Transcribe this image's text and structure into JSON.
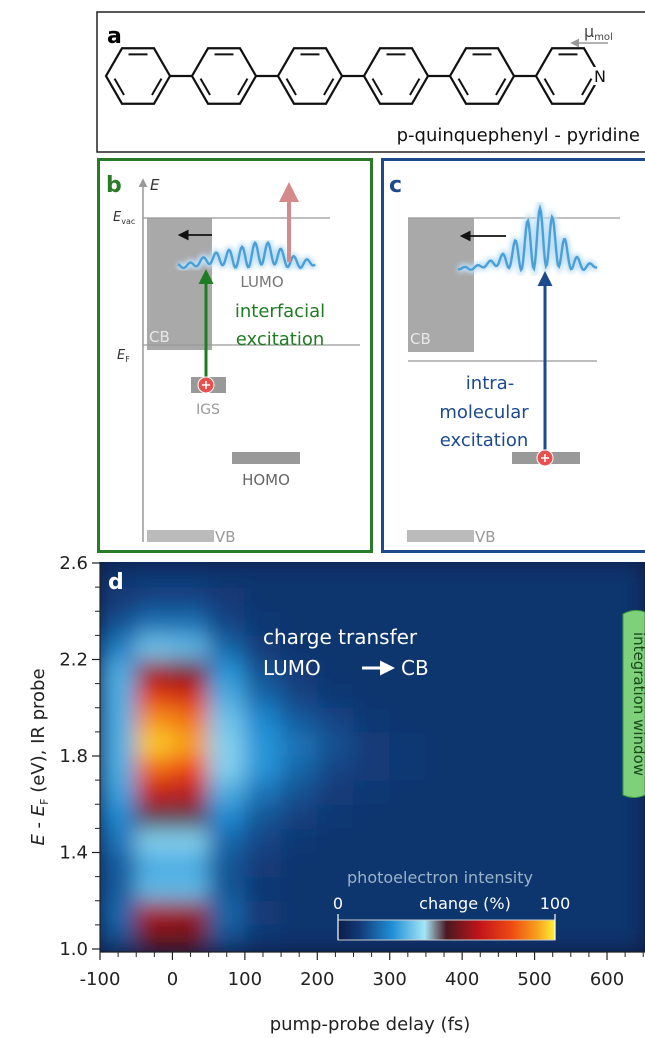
{
  "panel_a": {
    "label": "a",
    "mu": "μ",
    "mu_sub": "mol",
    "atom": "N",
    "name": "p-quinquephenyl - pyridine"
  },
  "panel_b": {
    "label": "b",
    "axis": "E",
    "evac": "E",
    "evac_sub": "vac",
    "lumo": "LUMO",
    "excitation": [
      "interfacial",
      "excitation"
    ],
    "cb": "CB",
    "ef": "E",
    "ef_sub": "F",
    "igs": "IGS",
    "homo": "HOMO",
    "vb": "VB"
  },
  "panel_c": {
    "label": "c",
    "cb": "CB",
    "excitation": [
      "intra-",
      "molecular",
      "excitation"
    ],
    "vb": "VB"
  },
  "chart_data": {
    "type": "heatmap",
    "label": "d",
    "annotation": "charge transfer",
    "transfer_from": "LUMO",
    "transfer_to": "CB",
    "integration": "integration window",
    "xlabel": "pump-probe delay (fs)",
    "ylabel": [
      "E",
      " - ",
      "E",
      "F",
      " (eV), IR probe"
    ],
    "xlim": [
      -100,
      650
    ],
    "ylim": [
      1.0,
      2.6
    ],
    "xticks": [
      -100,
      0,
      100,
      200,
      300,
      400,
      500,
      600
    ],
    "yticks": [
      {
        "value": 1.0,
        "label": "1.0"
      },
      1.4,
      1.8,
      2.2,
      2.6
    ],
    "x": [
      -75,
      -25,
      25,
      75,
      125,
      175,
      225,
      275,
      325,
      375,
      425,
      475,
      525,
      575,
      625
    ],
    "y": [
      1.05,
      1.15,
      1.25,
      1.35,
      1.45,
      1.55,
      1.65,
      1.75,
      1.85,
      1.95,
      2.05,
      2.15,
      2.25,
      2.35,
      2.45,
      2.55
    ],
    "z": [
      [
        14,
        55,
        55,
        14,
        9,
        8,
        8,
        8,
        8,
        8,
        8,
        8,
        8,
        8,
        8
      ],
      [
        18,
        62,
        60,
        18,
        10,
        8,
        8,
        8,
        8,
        8,
        8,
        8,
        8,
        8,
        8
      ],
      [
        16,
        32,
        32,
        15,
        9,
        8,
        8,
        8,
        8,
        8,
        8,
        8,
        8,
        8,
        8
      ],
      [
        16,
        30,
        30,
        15,
        10,
        8,
        8,
        8,
        8,
        8,
        8,
        8,
        8,
        8,
        8
      ],
      [
        20,
        36,
        36,
        18,
        12,
        9,
        8,
        8,
        8,
        8,
        8,
        8,
        8,
        8,
        8
      ],
      [
        24,
        48,
        48,
        24,
        15,
        11,
        9,
        8,
        8,
        8,
        8,
        8,
        8,
        8,
        8
      ],
      [
        28,
        66,
        64,
        30,
        20,
        14,
        10,
        9,
        8,
        8,
        8,
        8,
        8,
        8,
        8
      ],
      [
        30,
        84,
        80,
        36,
        26,
        18,
        12,
        10,
        9,
        8,
        8,
        8,
        8,
        8,
        8
      ],
      [
        30,
        96,
        92,
        36,
        26,
        20,
        14,
        10,
        9,
        8,
        8,
        8,
        8,
        8,
        8
      ],
      [
        30,
        90,
        86,
        34,
        24,
        16,
        12,
        9,
        8,
        8,
        8,
        8,
        8,
        8,
        8
      ],
      [
        30,
        76,
        72,
        30,
        18,
        12,
        9,
        8,
        8,
        8,
        8,
        8,
        8,
        8,
        8
      ],
      [
        30,
        60,
        56,
        26,
        14,
        10,
        8,
        8,
        8,
        8,
        8,
        8,
        8,
        8,
        8
      ],
      [
        22,
        34,
        32,
        18,
        10,
        8,
        8,
        8,
        8,
        8,
        8,
        8,
        8,
        8,
        8
      ],
      [
        14,
        20,
        20,
        12,
        9,
        8,
        8,
        8,
        8,
        8,
        8,
        8,
        8,
        8,
        8
      ],
      [
        10,
        12,
        12,
        10,
        8,
        8,
        8,
        8,
        8,
        8,
        8,
        8,
        8,
        8,
        8
      ],
      [
        8,
        9,
        9,
        8,
        8,
        8,
        8,
        8,
        8,
        8,
        8,
        8,
        8,
        8,
        8
      ]
    ],
    "colorscale": [
      [
        0,
        "#0b1c48"
      ],
      [
        10,
        "#123a78"
      ],
      [
        25,
        "#1f8fd6"
      ],
      [
        40,
        "#a6e6f6"
      ],
      [
        50,
        "#4a1820"
      ],
      [
        65,
        "#c0141a"
      ],
      [
        80,
        "#ee4a12"
      ],
      [
        92,
        "#f7a21c"
      ],
      [
        100,
        "#fff23a"
      ]
    ],
    "colorbar": {
      "title": [
        "photoelectron intensity",
        "change (%)"
      ],
      "ticks": [
        0,
        100
      ]
    }
  }
}
